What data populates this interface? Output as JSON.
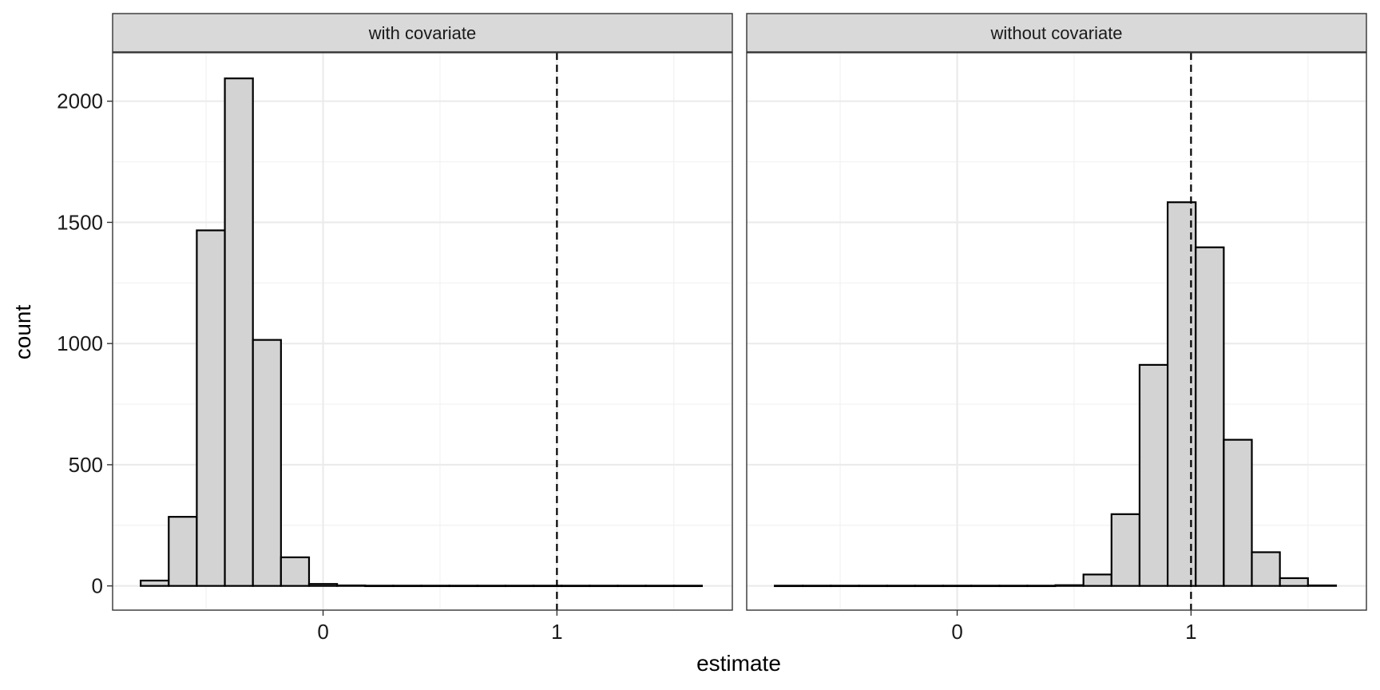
{
  "chart_data": {
    "type": "bar",
    "subtype": "faceted-histogram",
    "xlabel": "estimate",
    "ylabel": "count",
    "xlim": [
      -0.9,
      1.75
    ],
    "ylim": [
      -100,
      2200
    ],
    "x_ticks": [
      0,
      1
    ],
    "x_minor_ticks": [
      -0.5,
      0.5,
      1.5
    ],
    "y_ticks": [
      0,
      500,
      1000,
      1500,
      2000
    ],
    "y_minor_ticks": [
      250,
      750,
      1250,
      1750
    ],
    "bin_width": 0.12,
    "reference_line": {
      "x": 1,
      "style": "dashed"
    },
    "bar_fill": "#d3d3d3",
    "bar_stroke": "#000000",
    "panels": [
      {
        "label": "with covariate",
        "bin_centers": [
          -0.72,
          -0.6,
          -0.48,
          -0.36,
          -0.24,
          -0.12,
          0.0,
          0.12,
          0.24,
          0.36,
          0.48,
          0.6,
          0.72,
          0.84,
          0.96,
          1.08,
          1.2,
          1.32,
          1.44,
          1.56
        ],
        "counts": [
          22,
          285,
          1467,
          2094,
          1015,
          118,
          8,
          2,
          1,
          1,
          1,
          1,
          1,
          1,
          1,
          1,
          1,
          1,
          1,
          1
        ]
      },
      {
        "label": "without covariate",
        "bin_centers": [
          -0.72,
          -0.6,
          -0.48,
          -0.36,
          -0.24,
          -0.12,
          0.0,
          0.12,
          0.24,
          0.36,
          0.48,
          0.6,
          0.72,
          0.84,
          0.96,
          1.08,
          1.2,
          1.32,
          1.44,
          1.56
        ],
        "counts": [
          1,
          1,
          1,
          1,
          1,
          1,
          1,
          1,
          1,
          1,
          3,
          47,
          296,
          912,
          1583,
          1397,
          603,
          139,
          32,
          2
        ]
      }
    ]
  }
}
